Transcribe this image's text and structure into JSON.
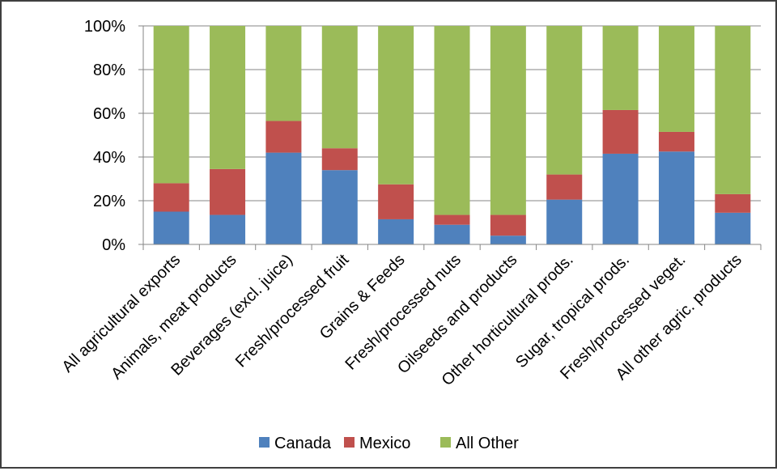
{
  "chart_data": {
    "type": "bar",
    "stacked": true,
    "percent": true,
    "categories": [
      "All agricultural exports",
      "Animals, meat products",
      "Beverages (excl. juice)",
      "Fresh/processed fruit",
      "Grains & Feeds",
      "Fresh/processed nuts",
      "Oilseeds and products",
      "Other horticultural prods.",
      "Sugar, tropical prods.",
      "Fresh/processed veget.",
      "All other agric. products"
    ],
    "series": [
      {
        "name": "Canada",
        "color": "#4f81bd",
        "values": [
          15,
          13.5,
          42,
          34,
          11.5,
          9,
          4,
          20.5,
          41.5,
          42.5,
          14.5
        ]
      },
      {
        "name": "Mexico",
        "color": "#c0504d",
        "values": [
          13,
          21,
          14.5,
          10,
          16,
          4.5,
          9.5,
          11.5,
          20,
          9,
          8.5
        ]
      },
      {
        "name": "All Other",
        "color": "#9bbb59",
        "values": [
          72,
          65.5,
          43.5,
          56,
          72.5,
          86.5,
          86.5,
          68,
          38.5,
          48.5,
          77
        ]
      }
    ],
    "yticks": [
      "0%",
      "20%",
      "40%",
      "60%",
      "80%",
      "100%"
    ],
    "ylim": [
      0,
      100
    ],
    "grid": true,
    "legend": "bottom"
  }
}
